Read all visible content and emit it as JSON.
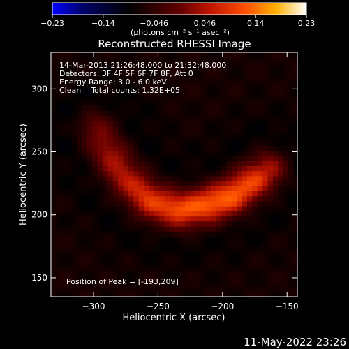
{
  "colorbar": {
    "ticks": [
      "-0.23",
      "-0.14",
      "-0.046",
      "0.046",
      "0.14",
      "0.23"
    ],
    "units_label": "(photons cm⁻² s⁻¹ asec⁻²)",
    "colors": [
      "#0000ff",
      "#000000",
      "#ff3000",
      "#ffa000",
      "#ffffff"
    ]
  },
  "info_lines": [
    "14-Mar-2013 21:26:48.000 to 21:32:48.000",
    "Detectors: 3F 4F 5F 6F 7F 8F, Att 0",
    "Energy Range: 3.0 - 6.0 keV",
    "Clean    Total counts: 1.32E+05"
  ],
  "footer_timestamp": "11-May-2022 23:26",
  "chart_data": {
    "type": "heatmap",
    "title": "Reconstructed RHESSI Image",
    "xlabel": "Heliocentric X (arcsec)",
    "ylabel": "Heliocentric Y (arcsec)",
    "xlim": [
      -333,
      -142
    ],
    "ylim": [
      135,
      329
    ],
    "xticks": [
      -300,
      -250,
      -200,
      -150
    ],
    "xtick_labels": [
      "−300",
      "−250",
      "−200",
      "−150"
    ],
    "yticks": [
      150,
      200,
      250,
      300
    ],
    "ytick_labels": [
      "150",
      "200",
      "250",
      "300"
    ],
    "colorbar_range": [
      -0.23,
      0.23
    ],
    "peak_annotation": "Position of Peak = [-193,209]",
    "peak_position": [
      -193,
      209
    ],
    "arc_path": [
      [
        -297,
        268
      ],
      [
        -288,
        249
      ],
      [
        -274,
        228
      ],
      [
        -254,
        210
      ],
      [
        -232,
        204
      ],
      [
        -212,
        208
      ],
      [
        -195,
        214
      ],
      [
        -172,
        230
      ],
      [
        -165,
        236
      ]
    ],
    "arc_peak_values": [
      0.11,
      0.14,
      0.16,
      0.2,
      0.22,
      0.23,
      0.23,
      0.2,
      0.15
    ]
  }
}
